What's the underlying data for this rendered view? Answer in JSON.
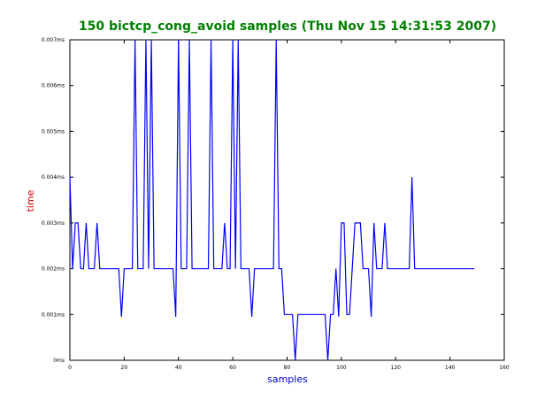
{
  "colors": {
    "title": "#008000",
    "xlabel": "#0000cc",
    "ylabel": "#cc0000",
    "series": "#0000ff",
    "axes": "#000000"
  },
  "chart_data": {
    "type": "line",
    "title": "150 bictcp_cong_avoid samples (Thu Nov 15 14:31:53 2007)",
    "xlabel": "samples",
    "ylabel": "time",
    "xlim": [
      0,
      160
    ],
    "ylim": [
      0,
      0.007
    ],
    "x_ticks": [
      0,
      20,
      40,
      60,
      80,
      100,
      120,
      140,
      160
    ],
    "y_ticks": [
      0,
      0.001,
      0.002,
      0.003,
      0.004,
      0.005,
      0.006,
      0.007
    ],
    "y_tick_labels": [
      "0ms",
      "0.001ms",
      "0.002ms",
      "0.003ms",
      "0.004ms",
      "0.005ms",
      "0.006ms",
      "0.007ms"
    ],
    "grid": false,
    "legend": "none",
    "series": [
      {
        "values": [
          0.004,
          0.002,
          0.003,
          0.003,
          0.002,
          0.002,
          0.003,
          0.002,
          0.002,
          0.002,
          0.003,
          0.002,
          0.002,
          0.002,
          0.002,
          0.002,
          0.002,
          0.002,
          0.002,
          0.00095,
          0.002,
          0.002,
          0.002,
          0.002,
          0.007,
          0.002,
          0.002,
          0.002,
          0.007,
          0.002,
          0.007,
          0.002,
          0.002,
          0.002,
          0.002,
          0.002,
          0.002,
          0.002,
          0.002,
          0.00095,
          0.007,
          0.002,
          0.002,
          0.002,
          0.007,
          0.002,
          0.002,
          0.002,
          0.002,
          0.002,
          0.002,
          0.002,
          0.007,
          0.002,
          0.002,
          0.002,
          0.002,
          0.003,
          0.002,
          0.002,
          0.007,
          0.002,
          0.007,
          0.002,
          0.002,
          0.002,
          0.002,
          0.00095,
          0.002,
          0.002,
          0.002,
          0.002,
          0.002,
          0.002,
          0.002,
          0.002,
          0.007,
          0.002,
          0.002,
          0.001,
          0.001,
          0.001,
          0.001,
          0.0,
          0.001,
          0.001,
          0.001,
          0.001,
          0.001,
          0.001,
          0.001,
          0.001,
          0.001,
          0.001,
          0.001,
          0.0,
          0.001,
          0.001,
          0.002,
          0.00095,
          0.003,
          0.003,
          0.001,
          0.001,
          0.002,
          0.003,
          0.003,
          0.003,
          0.002,
          0.002,
          0.002,
          0.00095,
          0.003,
          0.002,
          0.002,
          0.002,
          0.003,
          0.002,
          0.002,
          0.002,
          0.002,
          0.002,
          0.002,
          0.002,
          0.002,
          0.002,
          0.004,
          0.002,
          0.002,
          0.002,
          0.002,
          0.002,
          0.002,
          0.002,
          0.002,
          0.002,
          0.002,
          0.002,
          0.002,
          0.002,
          0.002,
          0.002,
          0.002,
          0.002,
          0.002,
          0.002,
          0.002,
          0.002,
          0.002,
          0.002
        ]
      }
    ]
  }
}
